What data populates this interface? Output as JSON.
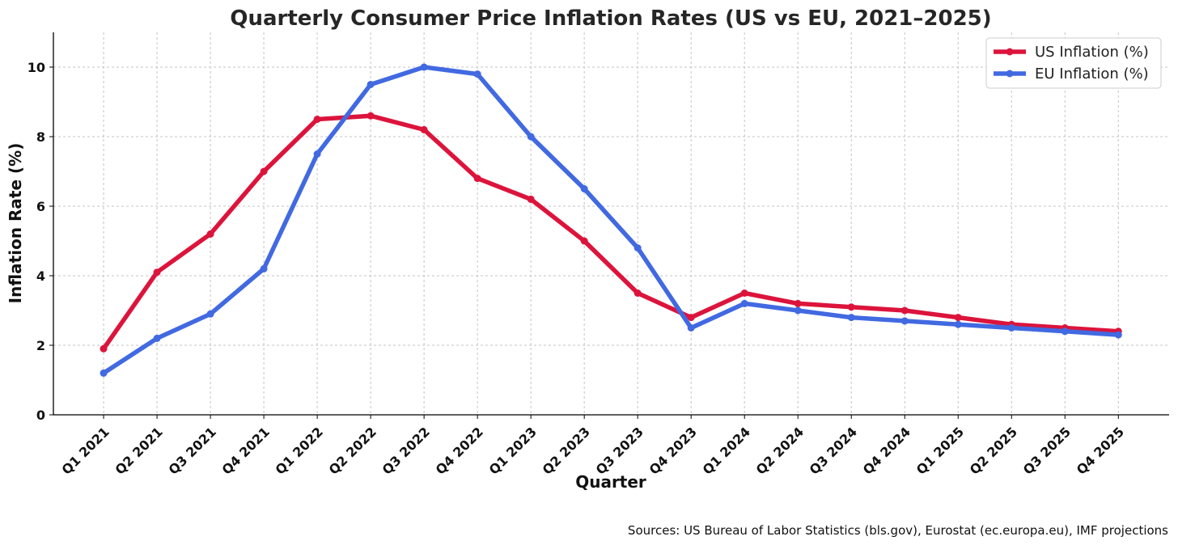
{
  "chart_data": {
    "type": "line",
    "title": "Quarterly Consumer Price Inflation Rates (US vs EU, 2021–2025)",
    "xlabel": "Quarter",
    "ylabel": "Inflation Rate (%)",
    "categories": [
      "Q1 2021",
      "Q2 2021",
      "Q3 2021",
      "Q4 2021",
      "Q1 2022",
      "Q2 2022",
      "Q3 2022",
      "Q4 2022",
      "Q1 2023",
      "Q2 2023",
      "Q3 2023",
      "Q4 2023",
      "Q1 2024",
      "Q2 2024",
      "Q3 2024",
      "Q4 2024",
      "Q1 2025",
      "Q2 2025",
      "Q3 2025",
      "Q4 2025"
    ],
    "ylim": [
      0,
      11
    ],
    "yticks": [
      0,
      2,
      4,
      6,
      8,
      10
    ],
    "grid": true,
    "legend_position": "top-right",
    "series": [
      {
        "name": "US Inflation (%)",
        "color": "#dc143c",
        "values": [
          1.9,
          4.1,
          5.2,
          7.0,
          8.5,
          8.6,
          8.2,
          6.8,
          6.2,
          5.0,
          3.5,
          2.8,
          3.5,
          3.2,
          3.1,
          3.0,
          2.8,
          2.6,
          2.5,
          2.4
        ]
      },
      {
        "name": "EU Inflation (%)",
        "color": "#4169e1",
        "values": [
          1.2,
          2.2,
          2.9,
          4.2,
          7.5,
          9.5,
          10.0,
          9.8,
          8.0,
          6.5,
          4.8,
          2.5,
          3.2,
          3.0,
          2.8,
          2.7,
          2.6,
          2.5,
          2.4,
          2.3
        ]
      }
    ],
    "annotation": "Sources: US Bureau of Labor Statistics (bls.gov), Eurostat (ec.europa.eu), IMF projections"
  }
}
